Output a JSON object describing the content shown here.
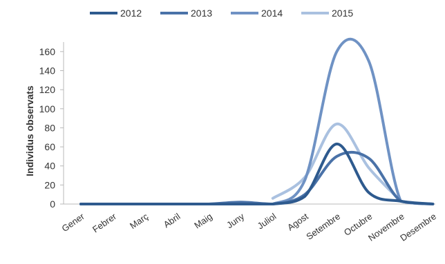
{
  "chart_data": {
    "type": "line",
    "ylabel": "Individus observats",
    "xlabel": "",
    "categories": [
      "Gener",
      "Febrer",
      "Març",
      "Abril",
      "Maig",
      "Juny",
      "Juliol",
      "Agost",
      "Setembre",
      "Octubre",
      "Novembre",
      "Desembre"
    ],
    "ylim": [
      0,
      170
    ],
    "yticks": [
      0,
      20,
      40,
      60,
      80,
      100,
      120,
      140,
      160
    ],
    "legend_position": "top",
    "grid": false,
    "series": [
      {
        "name": "2012",
        "color": "#2e5a8e",
        "values": [
          0,
          0,
          0,
          0,
          0,
          0,
          0,
          8,
          63,
          12,
          3,
          0
        ]
      },
      {
        "name": "2013",
        "color": "#4a72a8",
        "values": [
          0,
          0,
          0,
          0,
          0,
          2,
          0,
          10,
          50,
          48,
          3,
          0
        ]
      },
      {
        "name": "2014",
        "color": "#6f92c4",
        "values": [
          0,
          0,
          0,
          0,
          0,
          0,
          0,
          25,
          160,
          150,
          3,
          0
        ]
      },
      {
        "name": "2015",
        "color": "#aac1e0",
        "values": [
          null,
          null,
          null,
          null,
          null,
          null,
          6,
          28,
          84,
          38,
          3,
          null
        ]
      }
    ]
  }
}
